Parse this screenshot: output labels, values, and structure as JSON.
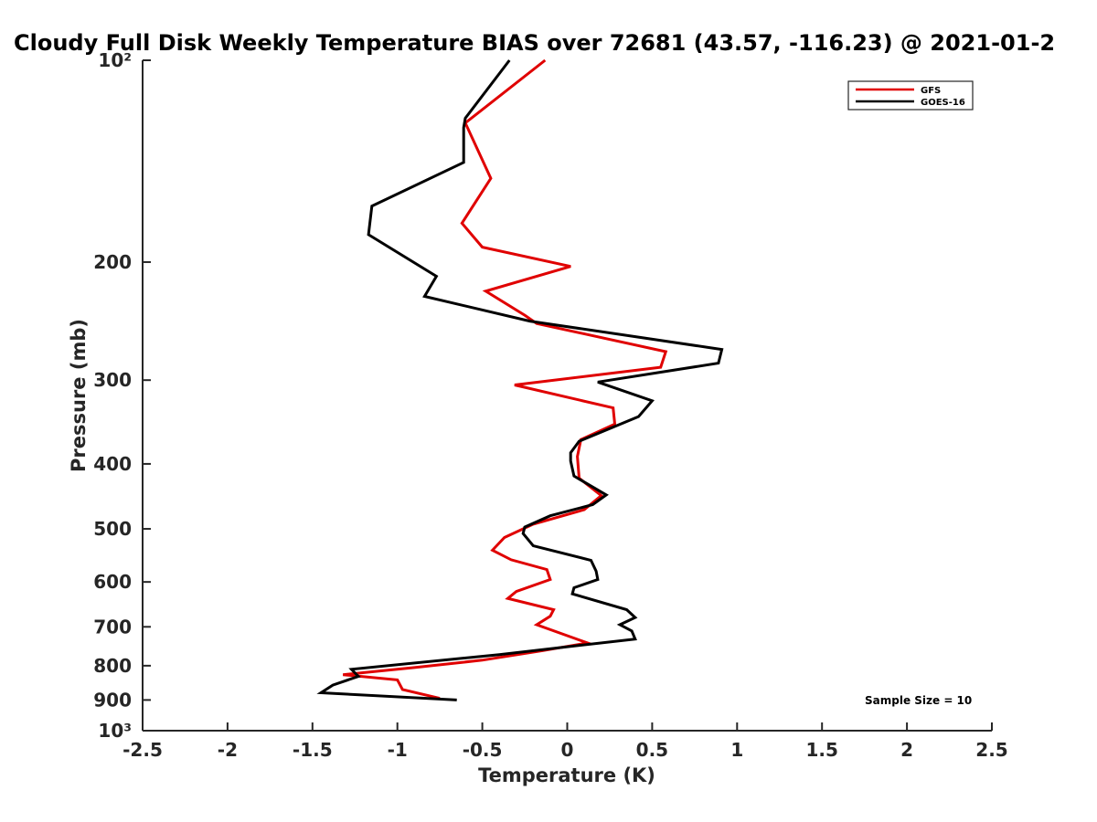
{
  "chart_data": {
    "type": "line",
    "title": "Cloudy Full Disk Weekly Temperature BIAS over 72681 (43.57, -116.23) @ 2021-01-2",
    "xlabel": "Temperature (K)",
    "ylabel": "Pressure (mb)",
    "xlim": [
      -2.5,
      2.5
    ],
    "ylim": [
      100,
      1000
    ],
    "y_scale": "log",
    "y_reversed": true,
    "x_ticks": [
      -2.5,
      -2,
      -1.5,
      -1,
      -0.5,
      0,
      0.5,
      1,
      1.5,
      2,
      2.5
    ],
    "x_tick_labels": [
      "-2.5",
      "-2",
      "-1.5",
      "-1",
      "-0.5",
      "0",
      "0.5",
      "1",
      "1.5",
      "2",
      "2.5"
    ],
    "y_ticks": [
      100,
      200,
      300,
      400,
      500,
      600,
      700,
      800,
      900,
      1000
    ],
    "y_tick_labels": [
      "10²",
      "200",
      "300",
      "400",
      "500",
      "600",
      "700",
      "800",
      "900",
      "10³"
    ],
    "grid": false,
    "legend_position": "top-right",
    "series": [
      {
        "name": "GFS",
        "color": "#e00000",
        "points": [
          [
            -0.13,
            100
          ],
          [
            -0.6,
            124
          ],
          [
            -0.45,
            150
          ],
          [
            -0.62,
            175
          ],
          [
            -0.5,
            190
          ],
          [
            0.02,
            203
          ],
          [
            -0.48,
            221
          ],
          [
            -0.25,
            240
          ],
          [
            -0.18,
            247
          ],
          [
            0.58,
            272
          ],
          [
            0.55,
            287
          ],
          [
            -0.31,
            305
          ],
          [
            0.27,
            330
          ],
          [
            0.28,
            349
          ],
          [
            0.08,
            368
          ],
          [
            0.06,
            390
          ],
          [
            0.07,
            420
          ],
          [
            0.2,
            446
          ],
          [
            0.1,
            468
          ],
          [
            -0.2,
            492
          ],
          [
            -0.37,
            515
          ],
          [
            -0.44,
            538
          ],
          [
            -0.33,
            556
          ],
          [
            -0.12,
            575
          ],
          [
            -0.1,
            595
          ],
          [
            -0.3,
            620
          ],
          [
            -0.35,
            635
          ],
          [
            -0.08,
            660
          ],
          [
            -0.1,
            675
          ],
          [
            -0.18,
            695
          ],
          [
            0.12,
            740
          ],
          [
            -0.15,
            760
          ],
          [
            -0.5,
            785
          ],
          [
            -0.9,
            805
          ],
          [
            -1.32,
            825
          ],
          [
            -1.0,
            840
          ],
          [
            -0.97,
            868
          ],
          [
            -0.75,
            895
          ]
        ]
      },
      {
        "name": "GOES-16",
        "color": "#000000",
        "points": [
          [
            -0.34,
            100
          ],
          [
            -0.6,
            122
          ],
          [
            -0.61,
            126
          ],
          [
            -0.61,
            142
          ],
          [
            -1.15,
            165
          ],
          [
            -1.17,
            182
          ],
          [
            -0.77,
            210
          ],
          [
            -0.84,
            225
          ],
          [
            -0.22,
            245
          ],
          [
            0.91,
            270
          ],
          [
            0.89,
            283
          ],
          [
            0.18,
            302
          ],
          [
            0.5,
            322
          ],
          [
            0.42,
            340
          ],
          [
            0.07,
            370
          ],
          [
            0.02,
            385
          ],
          [
            0.02,
            396
          ],
          [
            0.04,
            417
          ],
          [
            0.23,
            445
          ],
          [
            0.15,
            460
          ],
          [
            -0.1,
            478
          ],
          [
            -0.25,
            497
          ],
          [
            -0.26,
            508
          ],
          [
            -0.2,
            530
          ],
          [
            0.14,
            557
          ],
          [
            0.17,
            578
          ],
          [
            0.18,
            595
          ],
          [
            0.04,
            612
          ],
          [
            0.03,
            625
          ],
          [
            0.35,
            660
          ],
          [
            0.4,
            678
          ],
          [
            0.31,
            695
          ],
          [
            0.38,
            710
          ],
          [
            0.4,
            730
          ],
          [
            -0.4,
            770
          ],
          [
            -1.27,
            810
          ],
          [
            -1.23,
            830
          ],
          [
            -1.38,
            855
          ],
          [
            -1.45,
            878
          ],
          [
            -0.65,
            900
          ]
        ]
      }
    ],
    "annotations": [
      "Sample Size = 10"
    ]
  }
}
